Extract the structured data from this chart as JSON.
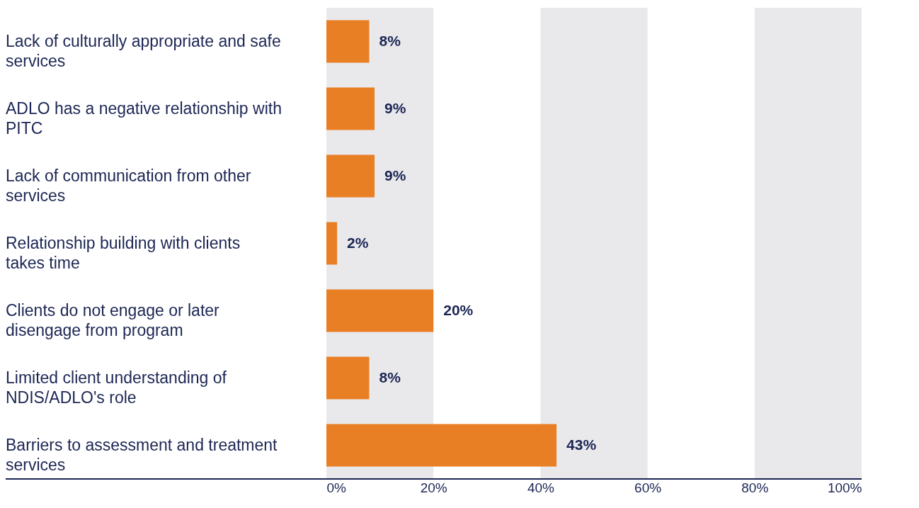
{
  "chart_data": {
    "type": "bar",
    "orientation": "horizontal",
    "categories": [
      "Lack of culturally appropriate and safe services",
      "ADLO has a negative relationship with PITC",
      "Lack of communication from other services",
      "Relationship building with clients takes time",
      "Clients do not engage or later disengage from program",
      "Limited client understanding of NDIS/ADLO's role",
      "Barriers to assessment and treatment services"
    ],
    "values": [
      8,
      9,
      9,
      2,
      20,
      8,
      43
    ],
    "value_labels": [
      "8%",
      "9%",
      "9%",
      "2%",
      "20%",
      "8%",
      "43%"
    ],
    "color": "#e97f25",
    "xlim": [
      0,
      100
    ],
    "xticks": [
      {
        "value": 0,
        "label": "0%"
      },
      {
        "value": 20,
        "label": "20%"
      },
      {
        "value": 40,
        "label": "40%"
      },
      {
        "value": 60,
        "label": "60%"
      },
      {
        "value": 80,
        "label": "80%"
      },
      {
        "value": 100,
        "label": "100%"
      }
    ],
    "bands": [
      {
        "axis": "x",
        "from": 0,
        "to": 20,
        "color": "#e9e9ec"
      },
      {
        "axis": "x",
        "from": 40,
        "to": 60,
        "color": "#e9e9ec"
      },
      {
        "axis": "x",
        "from": 80,
        "to": 100,
        "color": "#e9e9ec"
      }
    ],
    "grid": false
  }
}
